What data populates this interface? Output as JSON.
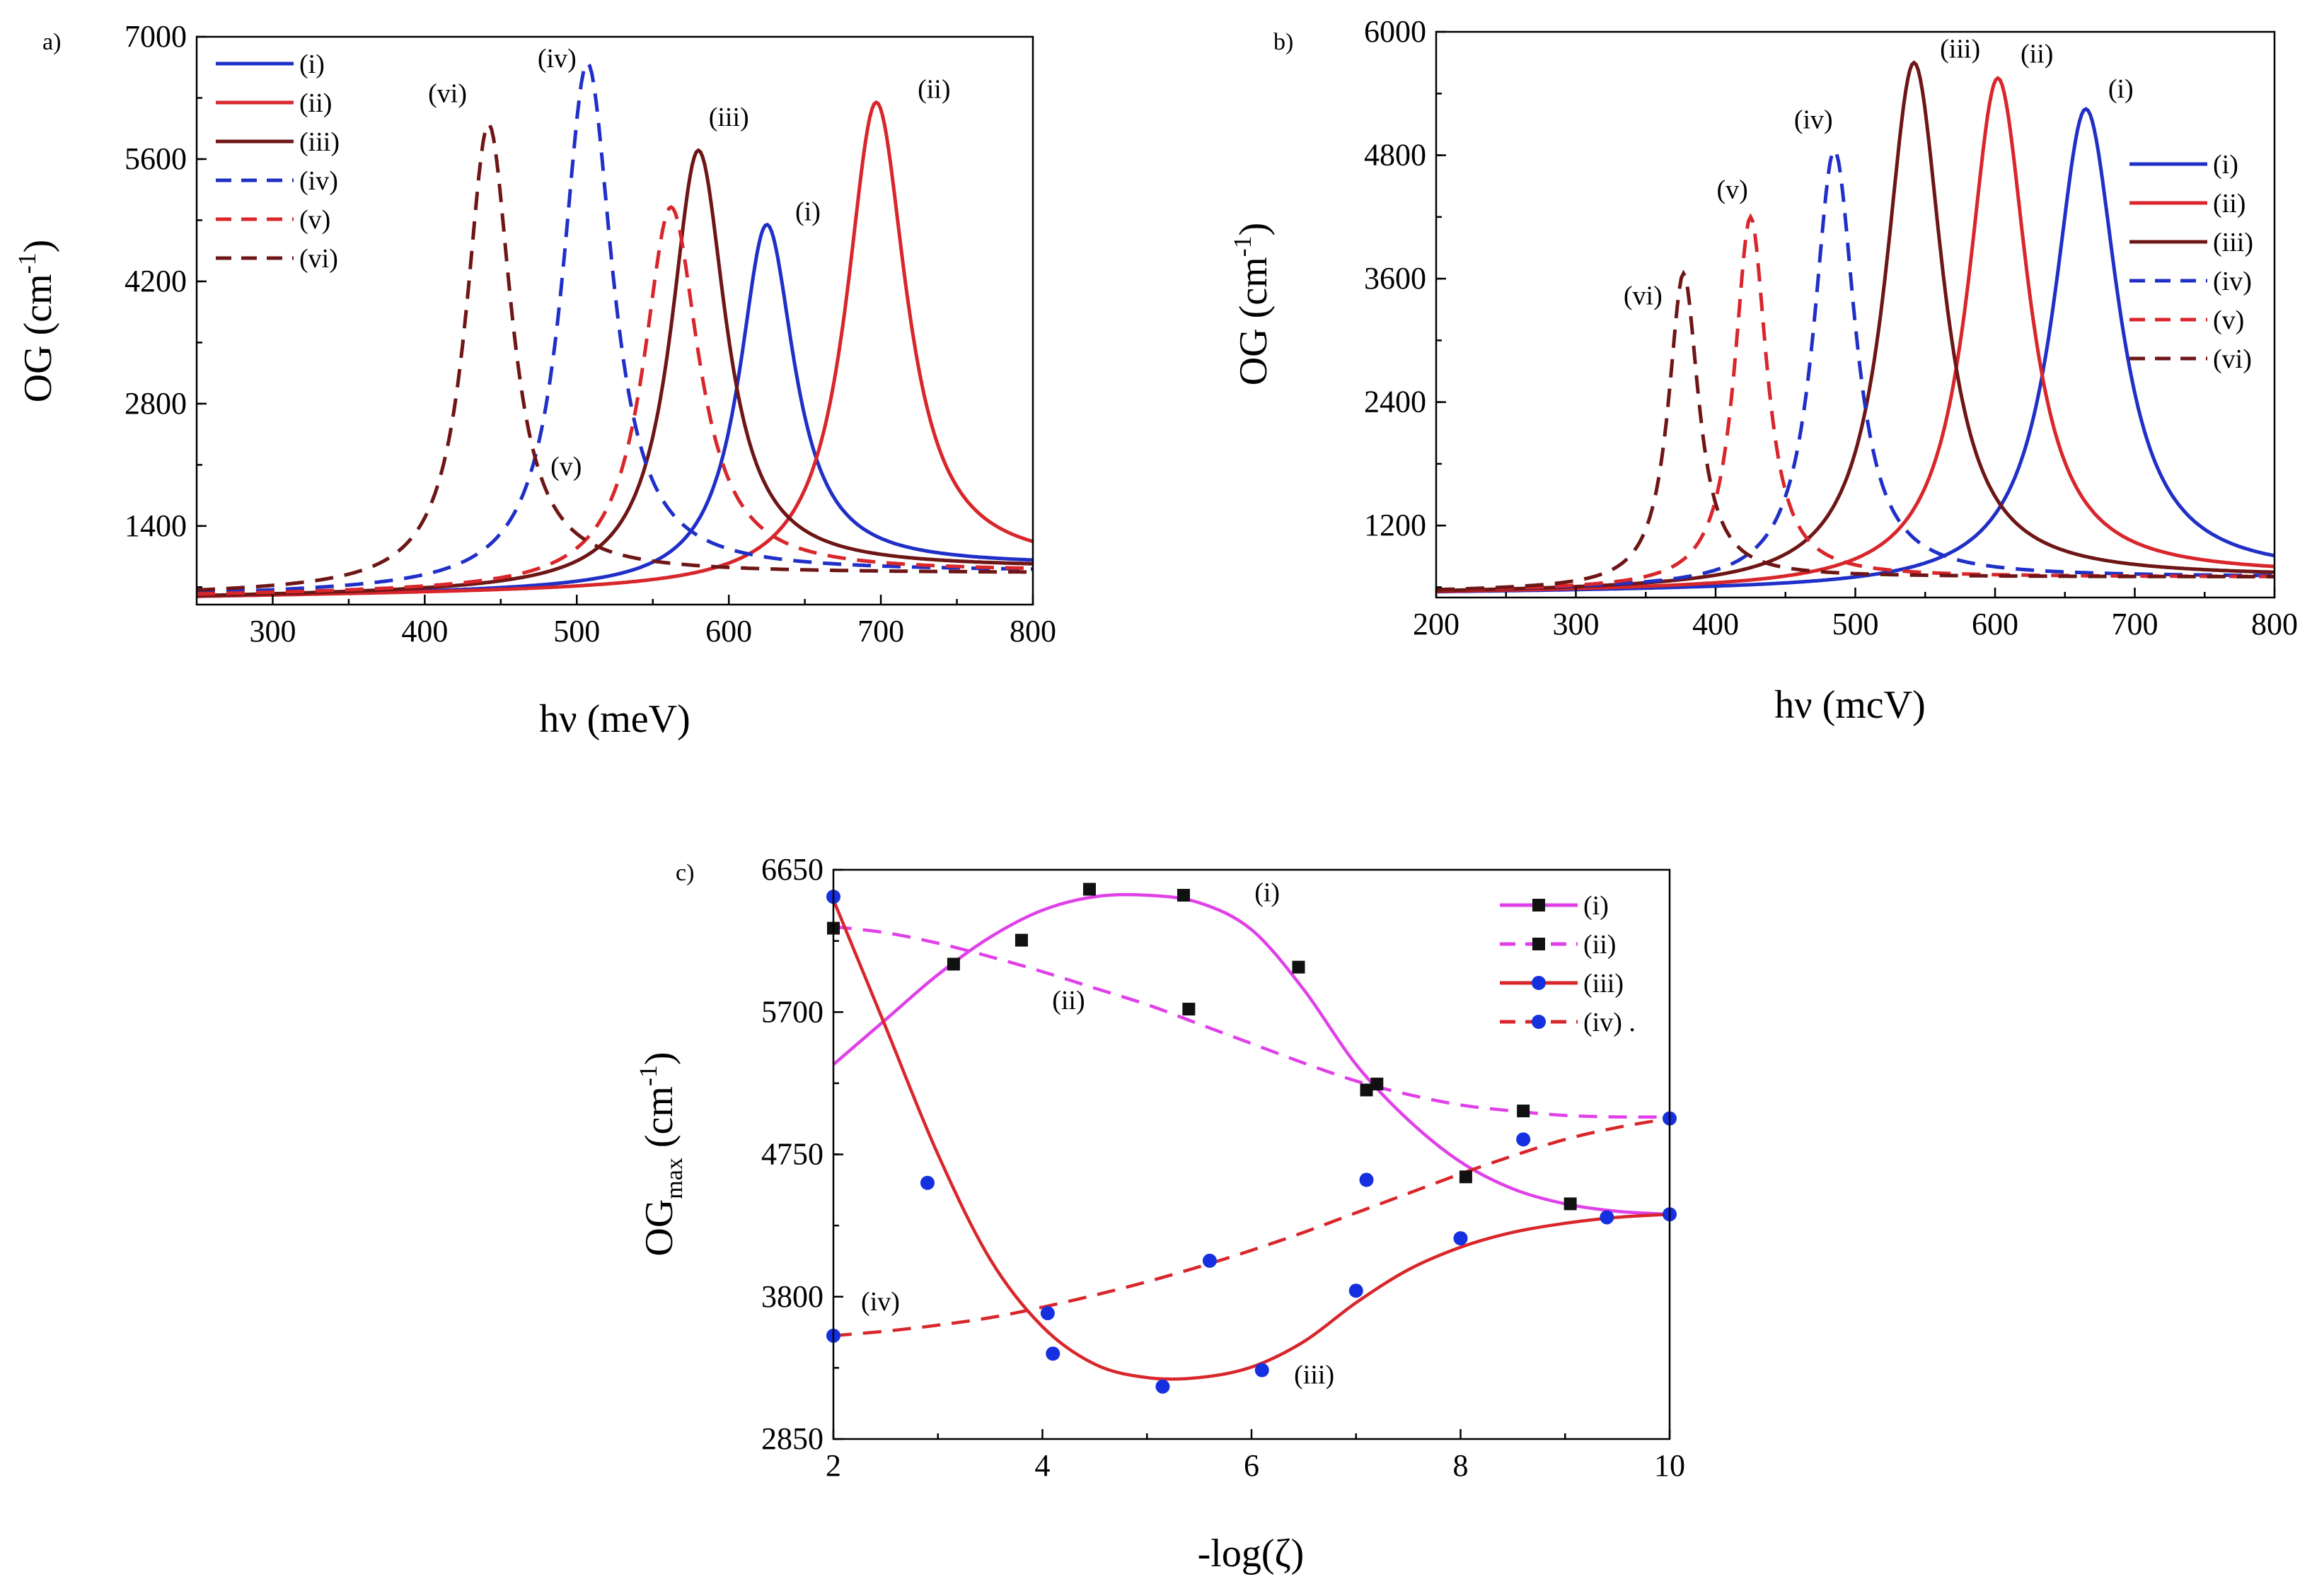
{
  "colors": {
    "blue": "#1f2fc7",
    "red": "#d8262b",
    "darkred": "#6e1515",
    "magenta": "#e040e8",
    "marker_square": "#111111",
    "marker_circle": "#1530e0"
  },
  "chart_data": [
    {
      "type": "line",
      "panel": "a)",
      "xlabel": "hν (meV)",
      "ylabel": "OG (cm-1)",
      "ylabel_main": "OG (cm",
      "ylabel_sup": "-1",
      "ylabel_close": ")",
      "xlim": [
        250,
        800
      ],
      "ylim": [
        500,
        7000
      ],
      "xticks": [
        300,
        400,
        500,
        600,
        700,
        800
      ],
      "xtick_labels": [
        "300",
        "400",
        "500",
        "600",
        "700",
        "800"
      ],
      "yticks": [
        1400,
        2800,
        4200,
        5600,
        7000
      ],
      "ytick_labels": [
        "1400",
        "2800",
        "4200",
        "5600",
        "7000"
      ],
      "legend_position": "top-left",
      "series": [
        {
          "name": "(i)",
          "color": "blue",
          "dash": "solid",
          "peak_x": 625,
          "peak_y": 4850,
          "width": 22,
          "base": 580,
          "tail": 950
        },
        {
          "name": "(ii)",
          "color": "red",
          "dash": "solid",
          "peak_x": 697,
          "peak_y": 6250,
          "width": 24,
          "base": 580,
          "tail": 950
        },
        {
          "name": "(iii)",
          "color": "darkred",
          "dash": "solid",
          "peak_x": 580,
          "peak_y": 5700,
          "width": 22,
          "base": 580,
          "tail": 920
        },
        {
          "name": "(iv)",
          "color": "blue",
          "dash": "dash",
          "peak_x": 507,
          "peak_y": 6700,
          "width": 20,
          "base": 600,
          "tail": 880
        },
        {
          "name": "(v)",
          "color": "red",
          "dash": "dash",
          "peak_x": 562,
          "peak_y": 5050,
          "width": 22,
          "base": 600,
          "tail": 880
        },
        {
          "name": "(vi)",
          "color": "darkred",
          "dash": "dash",
          "peak_x": 442,
          "peak_y": 6000,
          "width": 18,
          "base": 620,
          "tail": 860
        }
      ],
      "annotations": [
        {
          "text": "(vi)",
          "x": 415,
          "y": 6250
        },
        {
          "text": "(iv)",
          "x": 487,
          "y": 6650
        },
        {
          "text": "(iii)",
          "x": 600,
          "y": 5980
        },
        {
          "text": "(ii)",
          "x": 735,
          "y": 6300
        },
        {
          "text": "(i)",
          "x": 652,
          "y": 4900
        },
        {
          "text": "(v)",
          "x": 493,
          "y": 1980
        }
      ]
    },
    {
      "type": "line",
      "panel": "b)",
      "xlabel": "hν (mcV)",
      "ylabel": "OG (cm-1)",
      "ylabel_main": "OG (cm",
      "ylabel_sup": "-1",
      "ylabel_close": ")",
      "xlim": [
        200,
        800
      ],
      "ylim": [
        500,
        6000
      ],
      "xticks": [
        200,
        300,
        400,
        500,
        600,
        700,
        800
      ],
      "xtick_labels": [
        "200",
        "300",
        "400",
        "500",
        "600",
        "700",
        "800"
      ],
      "yticks": [
        1200,
        2400,
        3600,
        4800,
        6000
      ],
      "ytick_labels": [
        "1200",
        "2400",
        "3600",
        "4800",
        "6000"
      ],
      "legend_position": "right",
      "series": [
        {
          "name": "(i)",
          "color": "blue",
          "dash": "solid",
          "peak_x": 665,
          "peak_y": 5250,
          "width": 28,
          "base": 540,
          "tail": 720
        },
        {
          "name": "(ii)",
          "color": "red",
          "dash": "solid",
          "peak_x": 602,
          "peak_y": 5550,
          "width": 26,
          "base": 540,
          "tail": 720
        },
        {
          "name": "(iii)",
          "color": "darkred",
          "dash": "solid",
          "peak_x": 542,
          "peak_y": 5700,
          "width": 25,
          "base": 540,
          "tail": 700
        },
        {
          "name": "(iv)",
          "color": "blue",
          "dash": "dash",
          "peak_x": 485,
          "peak_y": 4850,
          "width": 18,
          "base": 560,
          "tail": 700
        },
        {
          "name": "(v)",
          "color": "red",
          "dash": "dash",
          "peak_x": 425,
          "peak_y": 4200,
          "width": 14,
          "base": 560,
          "tail": 700
        },
        {
          "name": "(vi)",
          "color": "darkred",
          "dash": "dash",
          "peak_x": 377,
          "peak_y": 3650,
          "width": 13,
          "base": 560,
          "tail": 700
        }
      ],
      "annotations": [
        {
          "text": "(vi)",
          "x": 348,
          "y": 3350
        },
        {
          "text": "(v)",
          "x": 412,
          "y": 4380
        },
        {
          "text": "(iv)",
          "x": 470,
          "y": 5060
        },
        {
          "text": "(iii)",
          "x": 575,
          "y": 5750
        },
        {
          "text": "(ii)",
          "x": 630,
          "y": 5700
        },
        {
          "text": "(i)",
          "x": 690,
          "y": 5360
        }
      ]
    },
    {
      "type": "line",
      "panel": "c)",
      "xlabel": "-log(ζ)",
      "ylabel": "OGmax (cm-1)",
      "ylabel_main": "OG",
      "ylabel_sub": "max",
      "ylabel_rest": " (cm",
      "ylabel_sup": "-1",
      "ylabel_close": ")",
      "xlim": [
        2,
        10
      ],
      "ylim": [
        2850,
        6650
      ],
      "xticks": [
        2,
        4,
        6,
        8,
        10
      ],
      "xtick_labels": [
        "2",
        "4",
        "6",
        "8",
        "10"
      ],
      "yticks": [
        2850,
        3800,
        4750,
        5700,
        6650
      ],
      "ytick_labels": [
        "2850",
        "3800",
        "4750",
        "5700",
        "6650"
      ],
      "legend_position": "top-right",
      "series": [
        {
          "name": "(i)",
          "color": "magenta",
          "dash": "solid",
          "marker": "square",
          "fit_x": [
            2,
            2.5,
            3,
            3.5,
            4,
            4.5,
            5,
            5.5,
            6,
            6.5,
            7,
            7.5,
            8,
            8.5,
            9,
            9.5,
            10
          ],
          "fit_y": [
            5350,
            5650,
            5950,
            6200,
            6380,
            6470,
            6480,
            6430,
            6250,
            5850,
            5350,
            4980,
            4700,
            4520,
            4420,
            4370,
            4350
          ],
          "points_x": [
            3.15,
            4.45,
            5.35,
            6.45,
            7.2,
            8.05,
            9.05
          ],
          "points_y": [
            6020,
            6520,
            6480,
            6000,
            5220,
            4600,
            4420
          ]
        },
        {
          "name": " (ii)",
          "color": "magenta",
          "dash": "dash",
          "marker": "square",
          "fit_x": [
            2,
            2.5,
            3,
            3.5,
            4,
            4.5,
            5,
            5.5,
            6,
            6.5,
            7,
            7.5,
            8,
            8.5,
            9,
            9.5,
            10
          ],
          "fit_y": [
            6270,
            6230,
            6160,
            6070,
            5970,
            5860,
            5750,
            5620,
            5490,
            5360,
            5240,
            5150,
            5080,
            5040,
            5010,
            5000,
            5000
          ],
          "points_x": [
            2,
            3.8,
            5.4,
            7.1,
            8.6
          ],
          "points_y": [
            6260,
            6180,
            5720,
            5180,
            5040
          ]
        },
        {
          "name": "(iii)",
          "color": "red",
          "dash": "solid",
          "marker": "circle",
          "fit_x": [
            2,
            2.5,
            3,
            3.5,
            4,
            4.5,
            5,
            5.5,
            6,
            6.5,
            7,
            7.5,
            8,
            8.5,
            9,
            9.5,
            10
          ],
          "fit_y": [
            6450,
            5600,
            4750,
            4050,
            3600,
            3350,
            3260,
            3260,
            3330,
            3500,
            3760,
            3980,
            4130,
            4230,
            4290,
            4330,
            4350
          ],
          "points_x": [
            2,
            4.1,
            5.15,
            6.1,
            7.0,
            8.0,
            9.4,
            10
          ],
          "points_y": [
            6470,
            3420,
            3200,
            3310,
            3840,
            4190,
            4330,
            4350
          ]
        },
        {
          "name": "(iv) .",
          "color": "red",
          "dash": "dash",
          "marker": "circle",
          "fit_x": [
            2,
            2.5,
            3,
            3.5,
            4,
            4.5,
            5,
            5.5,
            6,
            6.5,
            7,
            7.5,
            8,
            8.5,
            9,
            9.5,
            10
          ],
          "fit_y": [
            3540,
            3570,
            3610,
            3660,
            3730,
            3810,
            3900,
            4000,
            4110,
            4230,
            4360,
            4490,
            4620,
            4740,
            4850,
            4930,
            4990
          ],
          "points_x": [
            2,
            2.9,
            4.05,
            5.6,
            7.1,
            8.6,
            10
          ],
          "points_y": [
            3540,
            4560,
            3690,
            4040,
            4580,
            4850,
            4990
          ]
        }
      ],
      "annotations": [
        {
          "text": "(i)",
          "x": 6.15,
          "y": 6440
        },
        {
          "text": "(ii)",
          "x": 4.25,
          "y": 5720
        },
        {
          "text": "(iv)",
          "x": 2.45,
          "y": 3710
        },
        {
          "text": "(iii)",
          "x": 6.6,
          "y": 3220
        }
      ]
    }
  ]
}
